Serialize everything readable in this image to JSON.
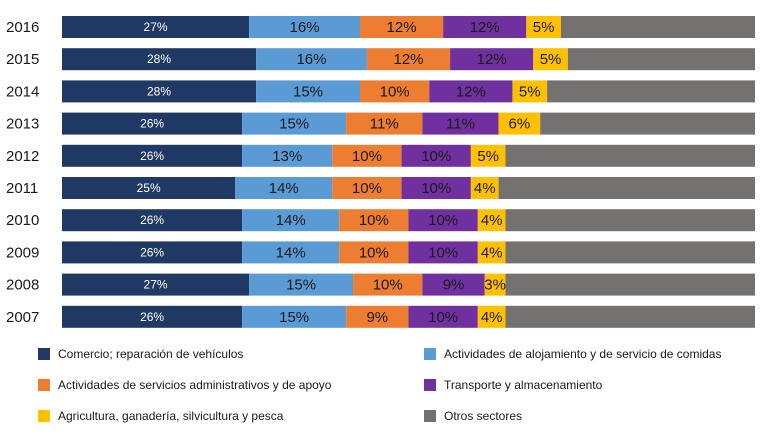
{
  "chart_data": {
    "type": "bar",
    "orientation": "horizontal",
    "stacked": true,
    "normalized": true,
    "categories": [
      "2016",
      "2015",
      "2014",
      "2013",
      "2012",
      "2011",
      "2010",
      "2009",
      "2008",
      "2007"
    ],
    "series": [
      {
        "name": "Comercio; reparación de vehículos",
        "color": "#203864",
        "values": [
          27,
          28,
          28,
          26,
          26,
          25,
          26,
          26,
          27,
          26
        ],
        "labels": [
          "27%",
          "28%",
          "28%",
          "26%",
          "26%",
          "25%",
          "26%",
          "26%",
          "27%",
          "26%"
        ]
      },
      {
        "name": "Actividades de alojamiento y de servicio de comidas",
        "color": "#5b9bd5",
        "values": [
          16,
          16,
          15,
          15,
          13,
          14,
          14,
          14,
          15,
          15
        ],
        "labels": [
          "16%",
          "16%",
          "15%",
          "15%",
          "13%",
          "14%",
          "14%",
          "14%",
          "15%",
          "15%"
        ]
      },
      {
        "name": "Actividades de servicios administrativos y de apoyo",
        "color": "#ed7d31",
        "values": [
          12,
          12,
          10,
          11,
          10,
          10,
          10,
          10,
          10,
          9
        ],
        "labels": [
          "12%",
          "12%",
          "10%",
          "11%",
          "10%",
          "10%",
          "10%",
          "10%",
          "10%",
          "9%"
        ]
      },
      {
        "name": "Transporte y almacenamiento",
        "color": "#7030a0",
        "values": [
          12,
          12,
          12,
          11,
          10,
          10,
          10,
          10,
          9,
          10
        ],
        "labels": [
          "12%",
          "12%",
          "12%",
          "11%",
          "10%",
          "10%",
          "10%",
          "10%",
          "9%",
          "10%"
        ]
      },
      {
        "name": "Agricultura, ganadería, silvicultura y pesca",
        "color": "#ffc000",
        "values": [
          5,
          5,
          5,
          6,
          5,
          4,
          4,
          4,
          3,
          4
        ],
        "labels": [
          "5%",
          "5%",
          "5%",
          "6%",
          "5%",
          "4%",
          "4%",
          "4%",
          "3%",
          "4%"
        ]
      },
      {
        "name": "Otros sectores",
        "color": "#767171",
        "values": [
          28,
          27,
          30,
          31,
          36,
          37,
          36,
          36,
          36,
          36
        ],
        "labels": [
          "",
          "",
          "",
          "",
          "",
          "",
          "",
          "",
          "",
          ""
        ]
      }
    ],
    "xlim": [
      0,
      100
    ],
    "legend_position": "bottom",
    "grid": false
  }
}
